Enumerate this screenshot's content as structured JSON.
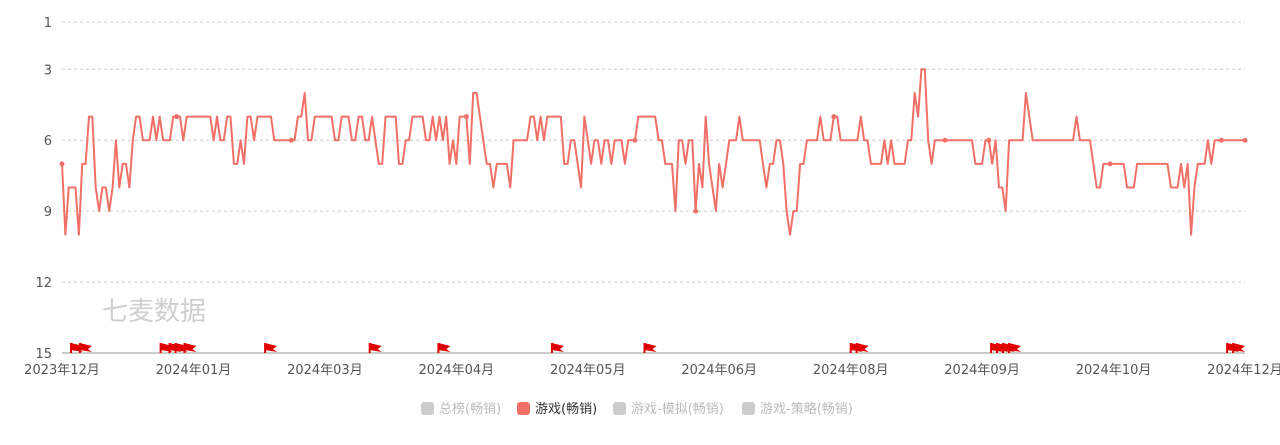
{
  "watermark": "七麦数据",
  "colors": {
    "series": "#f07068",
    "marker": "#e00000",
    "grid": "#cccccc",
    "axis": "#999999",
    "legend_inactive": "#cccccc",
    "legend_inactive_text": "#bbbbbb",
    "legend_active_text": "#333333"
  },
  "legend": [
    {
      "label": "总榜(畅销)",
      "active": false
    },
    {
      "label": "游戏(畅销)",
      "active": true
    },
    {
      "label": "游戏-模拟(畅销)",
      "active": false
    },
    {
      "label": "游戏-策略(畅销)",
      "active": false
    }
  ],
  "chart_data": {
    "type": "line",
    "y_inverted": true,
    "ylim": [
      1,
      15
    ],
    "yticks": [
      1,
      3,
      6,
      9,
      12,
      15
    ],
    "grid": "horizontal dashed",
    "legend_position": "bottom",
    "x_tick_labels": [
      "2023年12月",
      "2024年01月",
      "2024年03月",
      "2024年04月",
      "2024年05月",
      "2024年06月",
      "2024年08月",
      "2024年09月",
      "2024年10月",
      "2024年12月"
    ],
    "series": [
      {
        "name": "游戏(畅销)",
        "x_range": [
          "2023-12-01",
          "2024-12-31"
        ],
        "values": [
          7,
          10,
          8,
          8,
          8,
          10,
          7,
          7,
          5,
          5,
          8,
          9,
          8,
          8,
          9,
          8,
          6,
          8,
          7,
          7,
          8,
          6,
          5,
          5,
          6,
          6,
          6,
          5,
          6,
          5,
          6,
          6,
          6,
          5,
          5,
          5,
          6,
          5,
          5,
          5,
          5,
          5,
          5,
          5,
          5,
          6,
          5,
          6,
          6,
          5,
          5,
          7,
          7,
          6,
          7,
          5,
          5,
          6,
          5,
          5,
          5,
          5,
          5,
          6,
          6,
          6,
          6,
          6,
          6,
          6,
          5,
          5,
          4,
          6,
          6,
          5,
          5,
          5,
          5,
          5,
          5,
          6,
          6,
          5,
          5,
          5,
          6,
          6,
          5,
          5,
          6,
          6,
          5,
          6,
          7,
          7,
          5,
          5,
          5,
          5,
          7,
          7,
          6,
          6,
          5,
          5,
          5,
          5,
          6,
          6,
          5,
          6,
          5,
          6,
          5,
          7,
          6,
          7,
          5,
          5,
          5,
          7,
          4,
          4,
          5,
          6,
          7,
          7,
          8,
          7,
          7,
          7,
          7,
          8,
          6,
          6,
          6,
          6,
          6,
          5,
          5,
          6,
          5,
          6,
          5,
          5,
          5,
          5,
          5,
          7,
          7,
          6,
          6,
          7,
          8,
          5,
          6,
          7,
          6,
          6,
          7,
          6,
          6,
          7,
          6,
          6,
          6,
          7,
          6,
          6,
          6,
          5,
          5,
          5,
          5,
          5,
          5,
          6,
          6,
          7,
          7,
          7,
          9,
          6,
          6,
          7,
          6,
          6,
          9,
          7,
          8,
          5,
          7,
          8,
          9,
          7,
          8,
          7,
          6,
          6,
          6,
          5,
          6,
          6,
          6,
          6,
          6,
          6,
          7,
          8,
          7,
          7,
          6,
          6,
          7,
          9,
          10,
          9,
          9,
          7,
          7,
          6,
          6,
          6,
          6,
          5,
          6,
          6,
          6,
          5,
          5,
          6,
          6,
          6,
          6,
          6,
          6,
          5,
          6,
          6,
          7,
          7,
          7,
          7,
          6,
          7,
          6,
          7,
          7,
          7,
          7,
          6,
          6,
          4,
          5,
          3,
          3,
          6,
          7,
          6,
          6,
          6,
          6,
          6,
          6,
          6,
          6,
          6,
          6,
          6,
          6,
          7,
          7,
          7,
          6,
          6,
          7,
          6,
          8,
          8,
          9,
          6,
          6,
          6,
          6,
          6,
          4,
          5,
          6,
          6,
          6,
          6,
          6,
          6,
          6,
          6,
          6,
          6,
          6,
          6,
          6,
          5,
          6,
          6,
          6,
          6,
          7,
          8,
          8,
          7,
          7,
          7,
          7,
          7,
          7,
          7,
          8,
          8,
          8,
          7,
          7,
          7,
          7,
          7,
          7,
          7,
          7,
          7,
          7,
          8,
          8,
          8,
          7,
          8,
          7,
          10,
          8,
          7,
          7,
          7,
          6,
          7,
          6,
          6,
          6,
          6,
          6,
          6,
          6,
          6,
          6,
          6
        ]
      }
    ],
    "flag_dates": [
      "2023-12-04",
      "2023-12-07",
      "2024-01-03",
      "2024-01-06",
      "2024-01-08",
      "2024-01-11",
      "2024-02-07",
      "2024-03-13",
      "2024-04-05",
      "2024-05-13",
      "2024-06-13",
      "2024-08-21",
      "2024-08-23",
      "2024-10-07",
      "2024-10-09",
      "2024-10-11",
      "2024-10-13",
      "2024-12-25",
      "2024-12-27"
    ]
  }
}
